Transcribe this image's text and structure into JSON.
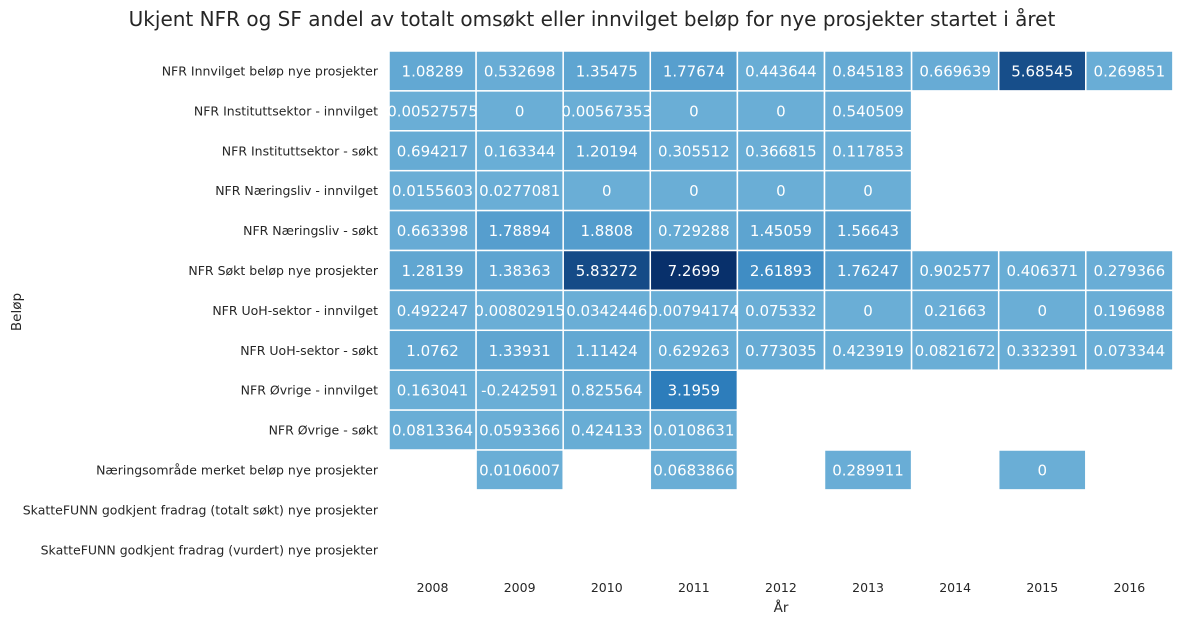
{
  "chart_data": {
    "type": "heatmap",
    "title": "Ukjent NFR og SF andel av totalt omsøkt eller innvilget beløp for nye prosjekter startet i året",
    "xlabel": "År",
    "ylabel": "Beløp",
    "x": [
      "2008",
      "2009",
      "2010",
      "2011",
      "2012",
      "2013",
      "2014",
      "2015",
      "2016"
    ],
    "y": [
      "NFR Innvilget beløp nye prosjekter",
      "NFR Instituttsektor - innvilget",
      "NFR Instituttsektor - søkt",
      "NFR Næringsliv - innvilget",
      "NFR Næringsliv - søkt",
      "NFR Søkt beløp nye prosjekter",
      "NFR UoH-sektor - innvilget",
      "NFR UoH-sektor - søkt",
      "NFR Øvrige - innvilget",
      "NFR Øvrige - søkt",
      "Næringsområde merket beløp nye prosjekter",
      "SkatteFUNN godkjent fradrag (totalt søkt) nye prosjekter",
      "SkatteFUNN godkjent fradrag (vurdert) nye prosjekter"
    ],
    "values": [
      [
        "1.08289",
        "0.532698",
        "1.35475",
        "1.77674",
        "0.443644",
        "0.845183",
        "0.669639",
        "5.68545",
        "0.269851"
      ],
      [
        "0.00527575",
        "0",
        "0.00567353",
        "0",
        "0",
        "0.540509",
        null,
        null,
        null
      ],
      [
        "0.694217",
        "0.163344",
        "1.20194",
        "0.305512",
        "0.366815",
        "0.117853",
        null,
        null,
        null
      ],
      [
        "0.0155603",
        "0.0277081",
        "0",
        "0",
        "0",
        "0",
        null,
        null,
        null
      ],
      [
        "0.663398",
        "1.78894",
        "1.8808",
        "0.729288",
        "1.45059",
        "1.56643",
        null,
        null,
        null
      ],
      [
        "1.28139",
        "1.38363",
        "5.83272",
        "7.2699",
        "2.61893",
        "1.76247",
        "0.902577",
        "0.406371",
        "0.279366"
      ],
      [
        "0.492247",
        "0.00802915",
        "0.0342446",
        "0.00794174",
        "0.075332",
        "0",
        "0.21663",
        "0",
        "0.196988"
      ],
      [
        "1.0762",
        "1.33931",
        "1.11424",
        "0.629263",
        "0.773035",
        "0.423919",
        "0.0821672",
        "0.332391",
        "0.073344"
      ],
      [
        "0.163041",
        "-0.242591",
        "0.825564",
        "3.1959",
        null,
        null,
        null,
        null,
        null
      ],
      [
        "0.0813364",
        "0.0593366",
        "0.424133",
        "0.0108631",
        null,
        null,
        null,
        null,
        null
      ],
      [
        null,
        "0.0106007",
        null,
        "0.0683866",
        null,
        "0.289911",
        null,
        "0",
        null
      ],
      [
        null,
        null,
        null,
        null,
        null,
        null,
        null,
        null,
        null
      ],
      [
        null,
        null,
        null,
        null,
        null,
        null,
        null,
        null,
        null
      ]
    ],
    "colorscale": "Blues",
    "colors": {
      "low": "#6aaed6",
      "mid": "#2e7ebc",
      "high": "#08306b"
    },
    "color_range": [
      -0.242591,
      7.2699
    ],
    "grid": false
  }
}
